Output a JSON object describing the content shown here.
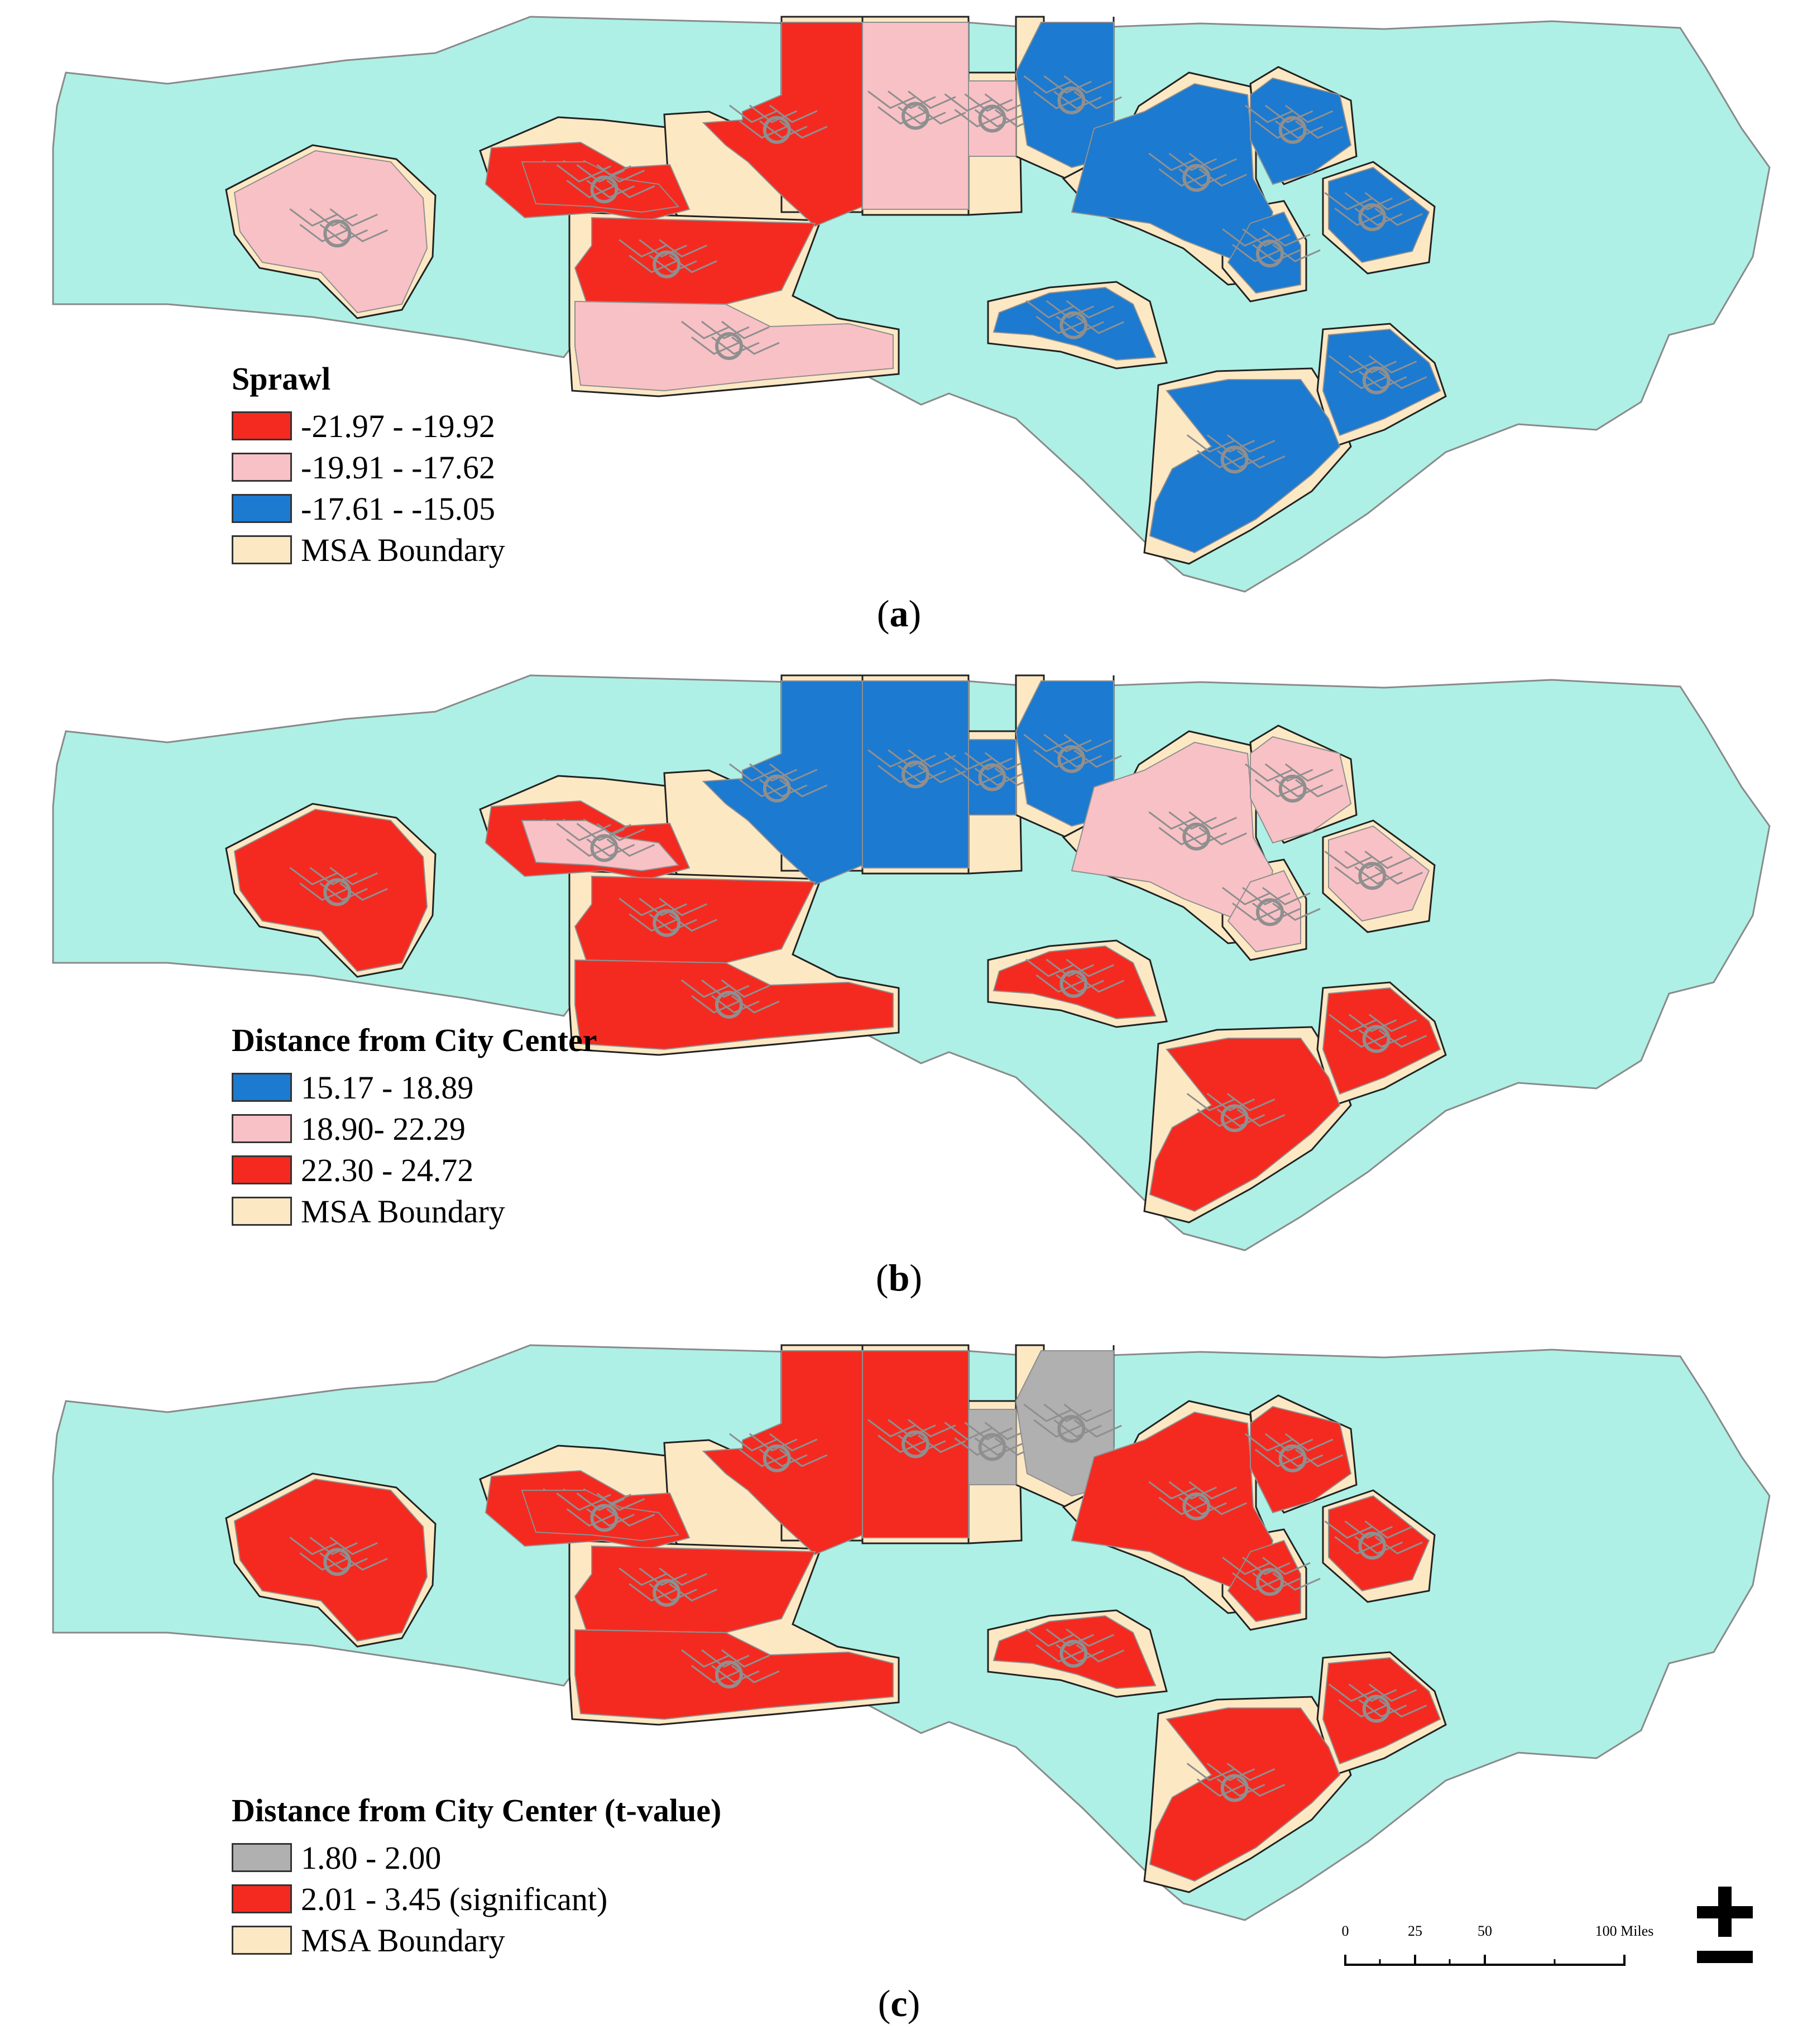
{
  "colors": {
    "state": "#aef0e5",
    "msa": "#fde8c4",
    "red": "#f42a20",
    "pink": "#f8c1c6",
    "blue": "#1c7ad0",
    "gray": "#b0b0b0",
    "tract_line": "#8f8f8f",
    "outline": "#222222"
  },
  "panels": [
    {
      "id": "a",
      "legend_title": "Sprawl",
      "legend_items": [
        {
          "label": "-21.97 - -19.92",
          "color": "#f42a20"
        },
        {
          "label": "-19.91 - -17.62",
          "color": "#f8c1c6"
        },
        {
          "label": "-17.61 - -15.05",
          "color": "#1c7ad0"
        },
        {
          "label": "MSA Boundary",
          "color": "#fde8c4"
        }
      ],
      "caption_open": "(",
      "caption_letter": "a",
      "caption_close": ")",
      "regions": {
        "asheville": "pink",
        "hickory": "red",
        "winston": "red",
        "greensboro": "pink",
        "burlington": "pink",
        "durham": "blue",
        "raleigh": "blue",
        "rocky_mount": "blue",
        "greenville": "blue",
        "goldsboro": "blue",
        "fayetteville": "blue",
        "charlotte_n": "red",
        "charlotte_s": "pink",
        "wilmington": "blue",
        "jacksonville": "blue",
        "hickory_west": "red"
      }
    },
    {
      "id": "b",
      "legend_title": "Distance from City Center",
      "legend_items": [
        {
          "label": "15.17 - 18.89",
          "color": "#1c7ad0"
        },
        {
          "label": "18.90- 22.29",
          "color": "#f8c1c6"
        },
        {
          "label": "22.30 - 24.72",
          "color": "#f42a20"
        },
        {
          "label": "MSA Boundary",
          "color": "#fde8c4"
        }
      ],
      "caption_open": "(",
      "caption_letter": "b",
      "caption_close": ")",
      "regions": {
        "asheville": "red",
        "hickory": "pink",
        "winston": "blue",
        "greensboro": "blue",
        "burlington": "blue",
        "durham": "blue",
        "raleigh": "pink",
        "rocky_mount": "pink",
        "greenville": "pink",
        "goldsboro": "pink",
        "fayetteville": "red",
        "charlotte_n": "red",
        "charlotte_s": "red",
        "wilmington": "red",
        "jacksonville": "red",
        "hickory_west": "red"
      }
    },
    {
      "id": "c",
      "legend_title": "Distance from City Center (t-value)",
      "legend_items": [
        {
          "label": "1.80 - 2.00",
          "color": "#b0b0b0"
        },
        {
          "label": "2.01 - 3.45 (significant)",
          "color": "#f42a20"
        },
        {
          "label": "MSA Boundary",
          "color": "#fde8c4"
        }
      ],
      "caption_open": "(",
      "caption_letter": "c",
      "caption_close": ")",
      "regions": {
        "asheville": "red",
        "hickory": "red",
        "winston": "red",
        "greensboro": "red",
        "burlington": "gray",
        "durham": "gray",
        "raleigh": "red",
        "rocky_mount": "red",
        "greenville": "red",
        "goldsboro": "red",
        "fayetteville": "red",
        "charlotte_n": "red",
        "charlotte_s": "red",
        "wilmington": "red",
        "jacksonville": "red",
        "hickory_west": "red"
      }
    }
  ],
  "scale_bar": {
    "ticks": [
      "0",
      "25",
      "50",
      "100 Miles"
    ],
    "tick_miles": [
      0,
      25,
      50,
      100
    ]
  },
  "north_arrow_icon": "north-arrow-icon"
}
